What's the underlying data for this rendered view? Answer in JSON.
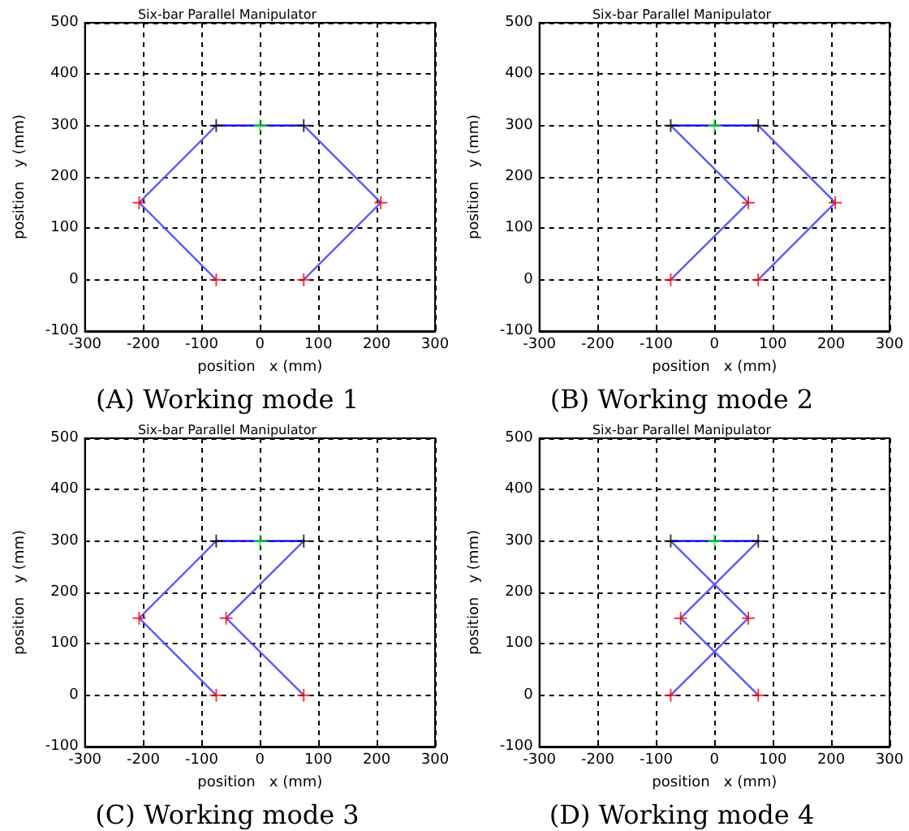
{
  "chart_data": [
    {
      "type": "line",
      "title": "Six-bar Parallel Manipulator",
      "xlabel": "position   x (mm)",
      "ylabel": "position   y (mm)",
      "annotations": [
        "(A) Working mode 1"
      ],
      "xlim": [
        -300,
        300
      ],
      "xticks": [
        -300,
        -200,
        -100,
        0,
        100,
        200,
        300
      ],
      "ylim": [
        -100,
        500
      ],
      "yticks": [
        -100,
        0,
        100,
        200,
        300,
        400,
        500
      ],
      "grid": true,
      "series": [
        {
          "type": "line",
          "color": "#5a5aff",
          "x": [
            -75,
            -207,
            -75
          ],
          "values": [
            0,
            150,
            300
          ],
          "marker": "none",
          "line_style": "solid"
        },
        {
          "type": "line",
          "color": "#5a5aff",
          "x": [
            75,
            207,
            75
          ],
          "values": [
            0,
            150,
            300
          ],
          "marker": "none",
          "line_style": "solid"
        },
        {
          "type": "line",
          "color": "#0000ff",
          "x": [
            -75,
            75
          ],
          "values": [
            300,
            300
          ],
          "marker": "none",
          "line_style": "solid"
        },
        {
          "type": "scatter",
          "color": "#ff0000",
          "x": [
            -75,
            -207,
            75,
            207
          ],
          "values": [
            0,
            150,
            0,
            150
          ],
          "marker": "cross"
        },
        {
          "type": "scatter",
          "color": "#000000",
          "x": [
            -75,
            75
          ],
          "values": [
            300,
            300
          ],
          "marker": "cross"
        },
        {
          "type": "scatter",
          "color": "#00ff00",
          "x": [
            0
          ],
          "values": [
            300
          ],
          "marker": "cross"
        }
      ]
    },
    {
      "type": "line",
      "title": "Six-bar Parallel Manipulator",
      "xlabel": "position   x (mm)",
      "ylabel": "position   y (mm)",
      "annotations": [
        "(B) Working mode 2"
      ],
      "xlim": [
        -300,
        300
      ],
      "xticks": [
        -300,
        -200,
        -100,
        0,
        100,
        200,
        300
      ],
      "ylim": [
        -100,
        500
      ],
      "yticks": [
        -100,
        0,
        100,
        200,
        300,
        400,
        500
      ],
      "grid": true,
      "series": [
        {
          "type": "line",
          "color": "#5a5aff",
          "x": [
            -75,
            58,
            -75
          ],
          "values": [
            0,
            150,
            300
          ],
          "marker": "none",
          "line_style": "solid"
        },
        {
          "type": "line",
          "color": "#5a5aff",
          "x": [
            75,
            207,
            75
          ],
          "values": [
            0,
            150,
            300
          ],
          "marker": "none",
          "line_style": "solid"
        },
        {
          "type": "line",
          "color": "#0000ff",
          "x": [
            -75,
            75
          ],
          "values": [
            300,
            300
          ],
          "marker": "none",
          "line_style": "solid"
        },
        {
          "type": "scatter",
          "color": "#ff0000",
          "x": [
            -75,
            58,
            75,
            207
          ],
          "values": [
            0,
            150,
            0,
            150
          ],
          "marker": "cross"
        },
        {
          "type": "scatter",
          "color": "#000000",
          "x": [
            -75,
            75
          ],
          "values": [
            300,
            300
          ],
          "marker": "cross"
        },
        {
          "type": "scatter",
          "color": "#00ff00",
          "x": [
            0
          ],
          "values": [
            300
          ],
          "marker": "cross"
        }
      ]
    },
    {
      "type": "line",
      "title": "Six-bar Parallel Manipulator",
      "xlabel": "position   x (mm)",
      "ylabel": "position   y (mm)",
      "annotations": [
        "(C) Working mode 3"
      ],
      "xlim": [
        -300,
        300
      ],
      "xticks": [
        -300,
        -200,
        -100,
        0,
        100,
        200,
        300
      ],
      "ylim": [
        -100,
        500
      ],
      "yticks": [
        -100,
        0,
        100,
        200,
        300,
        400,
        500
      ],
      "grid": true,
      "series": [
        {
          "type": "line",
          "color": "#5a5aff",
          "x": [
            -75,
            -207,
            -75
          ],
          "values": [
            0,
            150,
            300
          ],
          "marker": "none",
          "line_style": "solid"
        },
        {
          "type": "line",
          "color": "#5a5aff",
          "x": [
            75,
            -58,
            75
          ],
          "values": [
            0,
            150,
            300
          ],
          "marker": "none",
          "line_style": "solid"
        },
        {
          "type": "line",
          "color": "#0000ff",
          "x": [
            -75,
            75
          ],
          "values": [
            300,
            300
          ],
          "marker": "none",
          "line_style": "solid"
        },
        {
          "type": "scatter",
          "color": "#ff0000",
          "x": [
            -75,
            -207,
            75,
            -58
          ],
          "values": [
            0,
            150,
            0,
            150
          ],
          "marker": "cross"
        },
        {
          "type": "scatter",
          "color": "#000000",
          "x": [
            -75,
            75
          ],
          "values": [
            300,
            300
          ],
          "marker": "cross"
        },
        {
          "type": "scatter",
          "color": "#00ff00",
          "x": [
            0
          ],
          "values": [
            300
          ],
          "marker": "cross"
        }
      ]
    },
    {
      "type": "line",
      "title": "Six-bar Parallel Manipulator",
      "xlabel": "position   x (mm)",
      "ylabel": "position   y (mm)",
      "annotations": [
        "(D) Working mode 4"
      ],
      "xlim": [
        -300,
        300
      ],
      "xticks": [
        -300,
        -200,
        -100,
        0,
        100,
        200,
        300
      ],
      "ylim": [
        -100,
        500
      ],
      "yticks": [
        -100,
        0,
        100,
        200,
        300,
        400,
        500
      ],
      "grid": true,
      "series": [
        {
          "type": "line",
          "color": "#5a5aff",
          "x": [
            -75,
            58,
            -75
          ],
          "values": [
            0,
            150,
            300
          ],
          "marker": "none",
          "line_style": "solid"
        },
        {
          "type": "line",
          "color": "#5a5aff",
          "x": [
            75,
            -58,
            75
          ],
          "values": [
            0,
            150,
            300
          ],
          "marker": "none",
          "line_style": "solid"
        },
        {
          "type": "line",
          "color": "#0000ff",
          "x": [
            -75,
            75
          ],
          "values": [
            300,
            300
          ],
          "marker": "none",
          "line_style": "solid"
        },
        {
          "type": "scatter",
          "color": "#ff0000",
          "x": [
            -75,
            58,
            75,
            -58
          ],
          "values": [
            0,
            150,
            0,
            150
          ],
          "marker": "cross"
        },
        {
          "type": "scatter",
          "color": "#000000",
          "x": [
            -75,
            75
          ],
          "values": [
            300,
            300
          ],
          "marker": "cross"
        },
        {
          "type": "scatter",
          "color": "#00ff00",
          "x": [
            0
          ],
          "values": [
            300
          ],
          "marker": "cross"
        }
      ]
    }
  ]
}
